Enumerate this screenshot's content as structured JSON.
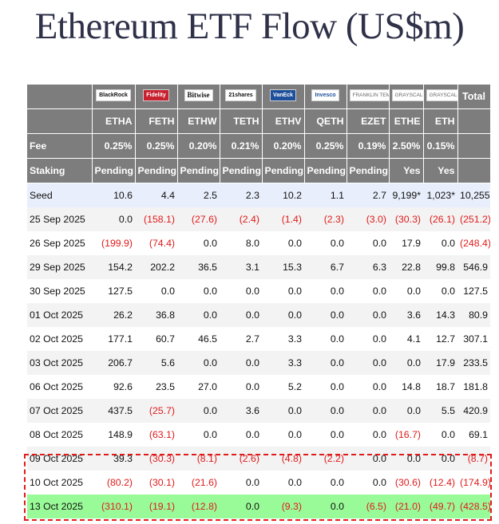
{
  "title": "Ethereum ETF Flow (US$m)",
  "issuer_logos": [
    "BlackRock",
    "Fidelity",
    "Bitwise",
    "21shares",
    "VanEck",
    "Invesco",
    "FRANKLIN TEMPLETON",
    "GRAYSCALE",
    "GRAYSCALE"
  ],
  "total_label": "Total",
  "tickers": [
    "ETHA",
    "FETH",
    "ETHW",
    "TETH",
    "ETHV",
    "QETH",
    "EZET",
    "ETHE",
    "ETH"
  ],
  "fee_label": "Fee",
  "fees": [
    "0.25%",
    "0.25%",
    "0.20%",
    "0.21%",
    "0.20%",
    "0.25%",
    "0.19%",
    "2.50%",
    "0.15%"
  ],
  "staking_label": "Staking",
  "staking": [
    "Pending",
    "Pending",
    "Pending",
    "Pending",
    "Pending",
    "Pending",
    "Pending",
    "Yes",
    "Yes"
  ],
  "rows": [
    {
      "date": "Seed",
      "values": [
        "10.6",
        "4.4",
        "2.5",
        "2.3",
        "10.2",
        "1.1",
        "2.7",
        "9,199*",
        "1,023*",
        "10,255"
      ]
    },
    {
      "date": "25 Sep 2025",
      "values": [
        "0.0",
        "(158.1)",
        "(27.6)",
        "(2.4)",
        "(1.4)",
        "(2.3)",
        "(3.0)",
        "(30.3)",
        "(26.1)",
        "(251.2)"
      ]
    },
    {
      "date": "26 Sep 2025",
      "values": [
        "(199.9)",
        "(74.4)",
        "0.0",
        "8.0",
        "0.0",
        "0.0",
        "0.0",
        "17.9",
        "0.0",
        "(248.4)"
      ]
    },
    {
      "date": "29 Sep 2025",
      "values": [
        "154.2",
        "202.2",
        "36.5",
        "3.1",
        "15.3",
        "6.7",
        "6.3",
        "22.8",
        "99.8",
        "546.9"
      ]
    },
    {
      "date": "30 Sep 2025",
      "values": [
        "127.5",
        "0.0",
        "0.0",
        "0.0",
        "0.0",
        "0.0",
        "0.0",
        "0.0",
        "0.0",
        "127.5"
      ]
    },
    {
      "date": "01 Oct 2025",
      "values": [
        "26.2",
        "36.8",
        "0.0",
        "0.0",
        "0.0",
        "0.0",
        "0.0",
        "3.6",
        "14.3",
        "80.9"
      ]
    },
    {
      "date": "02 Oct 2025",
      "values": [
        "177.1",
        "60.7",
        "46.5",
        "2.7",
        "3.3",
        "0.0",
        "0.0",
        "4.1",
        "12.7",
        "307.1"
      ]
    },
    {
      "date": "03 Oct 2025",
      "values": [
        "206.7",
        "5.6",
        "0.0",
        "0.0",
        "3.3",
        "0.0",
        "0.0",
        "0.0",
        "17.9",
        "233.5"
      ]
    },
    {
      "date": "06 Oct 2025",
      "values": [
        "92.6",
        "23.5",
        "27.0",
        "0.0",
        "5.2",
        "0.0",
        "0.0",
        "14.8",
        "18.7",
        "181.8"
      ]
    },
    {
      "date": "07 Oct 2025",
      "values": [
        "437.5",
        "(25.7)",
        "0.0",
        "3.6",
        "0.0",
        "0.0",
        "0.0",
        "0.0",
        "5.5",
        "420.9"
      ]
    },
    {
      "date": "08 Oct 2025",
      "values": [
        "148.9",
        "(63.1)",
        "0.0",
        "0.0",
        "0.0",
        "0.0",
        "0.0",
        "(16.7)",
        "0.0",
        "69.1"
      ]
    },
    {
      "date": "09 Oct 2025",
      "values": [
        "39.3",
        "(30.3)",
        "(8.1)",
        "(2.6)",
        "(4.8)",
        "(2.2)",
        "0.0",
        "0.0",
        "0.0",
        "(8.7)"
      ]
    },
    {
      "date": "10 Oct 2025",
      "values": [
        "(80.2)",
        "(30.1)",
        "(21.6)",
        "0.0",
        "0.0",
        "0.0",
        "0.0",
        "(30.6)",
        "(12.4)",
        "(174.9)"
      ]
    },
    {
      "date": "13 Oct 2025",
      "values": [
        "(310.1)",
        "(19.1)",
        "(12.8)",
        "0.0",
        "(9.3)",
        "0.0",
        "(6.5)",
        "(21.0)",
        "(49.7)",
        "(428.5)"
      ]
    }
  ],
  "colors": {
    "header_bg": "#7d7d7d",
    "negative": "#e01b1b",
    "highlight_row": "#99fb97",
    "seed_row": "#e8eefb",
    "title": "#2e3148"
  }
}
